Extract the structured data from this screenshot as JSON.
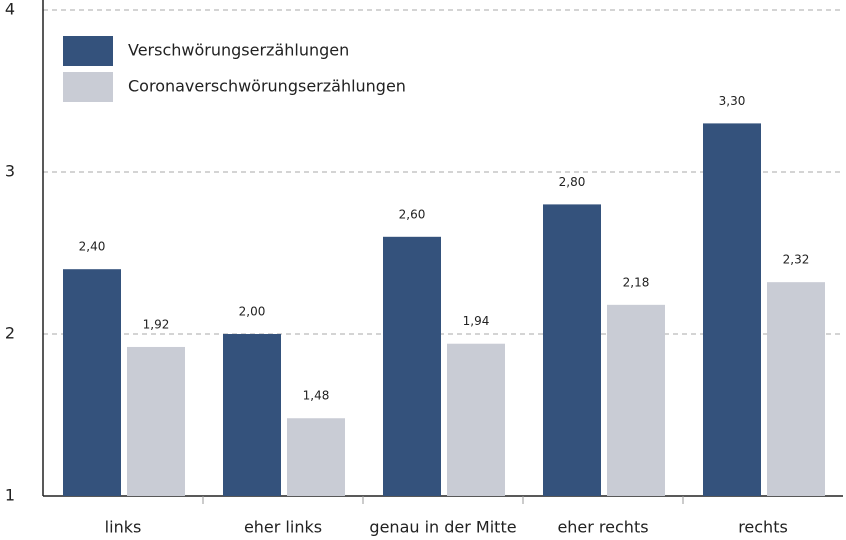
{
  "chart_data": {
    "type": "bar",
    "categories": [
      "links",
      "eher links",
      "genau in der Mitte",
      "eher rechts",
      "rechts"
    ],
    "series": [
      {
        "name": "Verschwörungserzählungen",
        "color": "#34527c",
        "values": [
          2.4,
          2.0,
          2.6,
          2.8,
          3.3
        ],
        "value_labels": [
          "2,40",
          "2,00",
          "2,60",
          "2,80",
          "3,30"
        ]
      },
      {
        "name": "Coronaverschwörungserzählungen",
        "color": "#c9ccd5",
        "values": [
          1.92,
          1.48,
          1.94,
          2.18,
          2.32
        ],
        "value_labels": [
          "1,92",
          "1,48",
          "1,94",
          "2,18",
          "2,32"
        ]
      }
    ],
    "ylim": [
      1,
      4
    ],
    "yticks": [
      1,
      2,
      3,
      4
    ],
    "grid": true,
    "legend": "upper left"
  }
}
